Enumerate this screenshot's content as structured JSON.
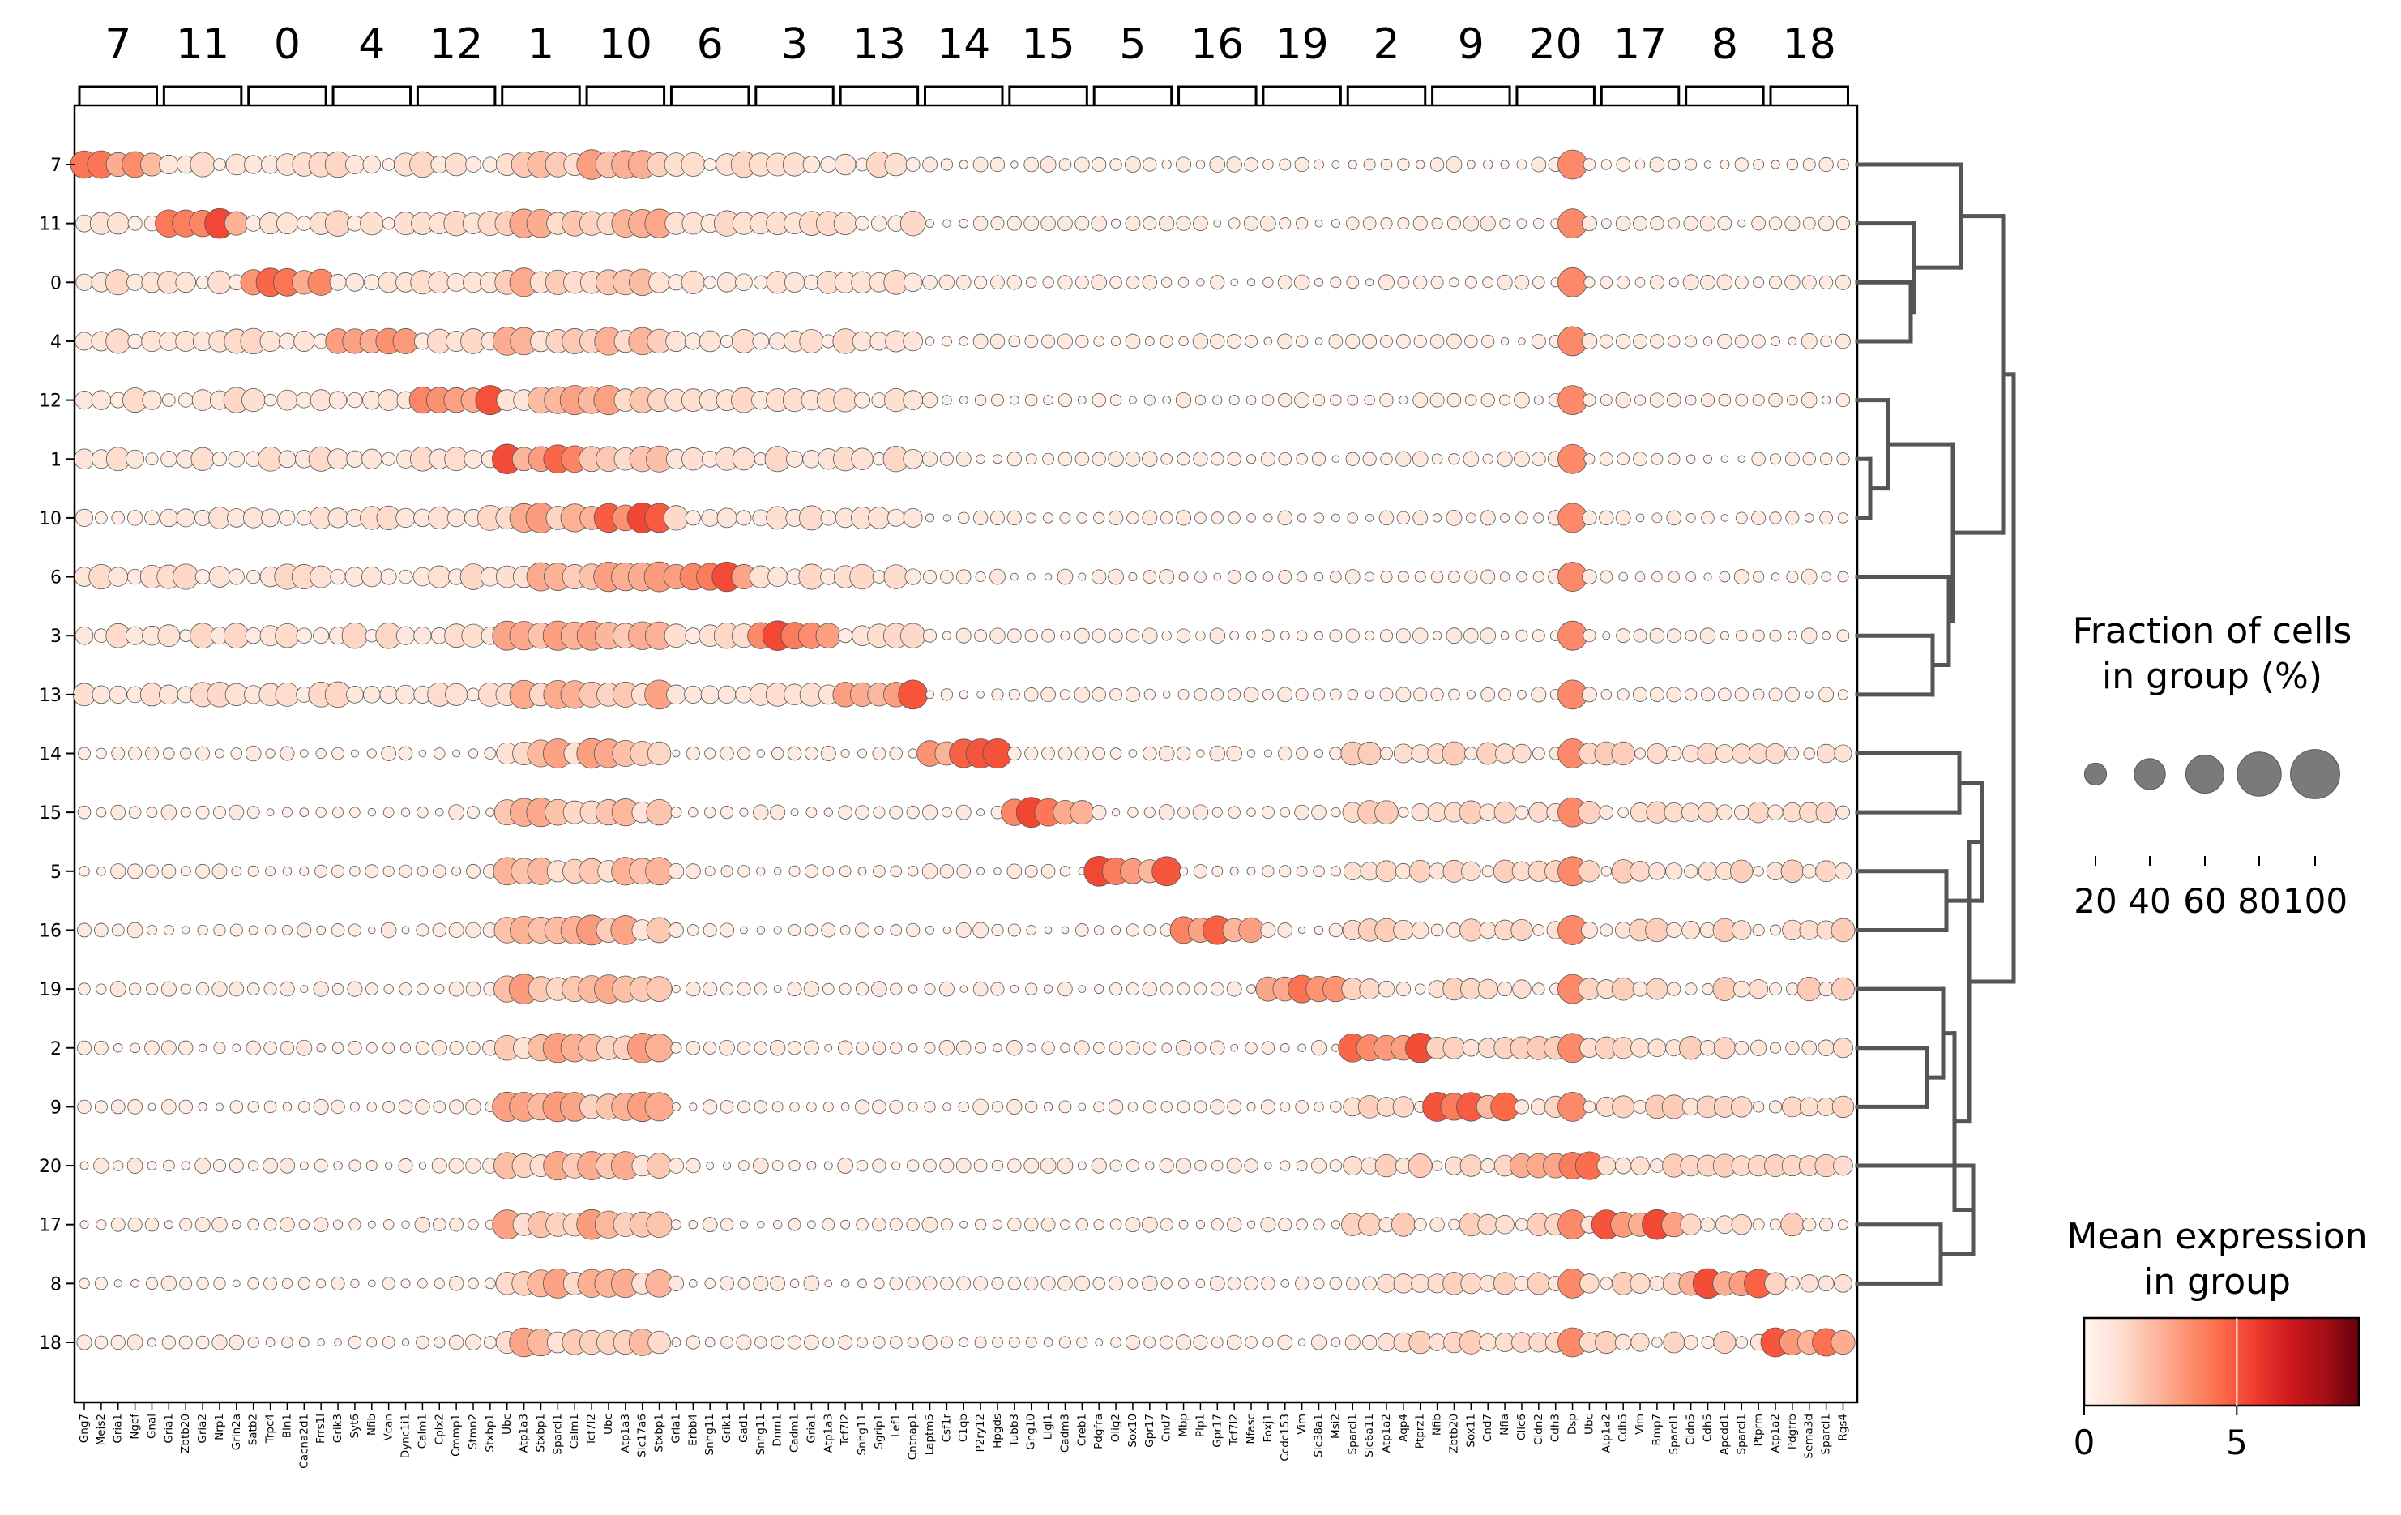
{
  "chart_data": {
    "type": "dotplot",
    "groups": [
      "7",
      "11",
      "0",
      "4",
      "12",
      "1",
      "10",
      "6",
      "3",
      "13",
      "14",
      "15",
      "5",
      "16",
      "19",
      "2",
      "9",
      "20",
      "17",
      "8",
      "18"
    ],
    "gene_categories": [
      {
        "label": "7",
        "genes": [
          "Gng7",
          "Meis2",
          "Gria1",
          "Ngef",
          "Gnal"
        ]
      },
      {
        "label": "11",
        "genes": [
          "Gria1",
          "Zbtb20",
          "Gria2",
          "Nrp1",
          "Grin2a"
        ]
      },
      {
        "label": "0",
        "genes": [
          "Satb2",
          "Trpc4",
          "Bin1",
          "Cacna2d1",
          "Frrs1l"
        ]
      },
      {
        "label": "4",
        "genes": [
          "Grik3",
          "Syt6",
          "Nfib",
          "Vcan",
          "Dync1i1"
        ]
      },
      {
        "label": "12",
        "genes": [
          "Calm1",
          "Cplx2",
          "Cmmp1",
          "Stmn2",
          "Stxbp1"
        ]
      },
      {
        "label": "1",
        "genes": [
          "Ubc",
          "Atp1a3",
          "Stxbp1",
          "Sparcl1",
          "Calm1"
        ]
      },
      {
        "label": "10",
        "genes": [
          "Tcf7l2",
          "Ubc",
          "Atp1a3",
          "Slc17a6",
          "Stxbp1"
        ]
      },
      {
        "label": "6",
        "genes": [
          "Gria1",
          "Erbb4",
          "Snhg11",
          "Grik1",
          "Gad1"
        ]
      },
      {
        "label": "3",
        "genes": [
          "Snhg11",
          "Dnm1",
          "Cadm1",
          "Gria1",
          "Atp1a3"
        ]
      },
      {
        "label": "13",
        "genes": [
          "Tcf7l2",
          "Snhg11",
          "Sgrip1",
          "Lef1",
          "Cntnap1"
        ]
      },
      {
        "label": "14",
        "genes": [
          "Laptm5",
          "Csf1r",
          "C1qb",
          "P2ry12",
          "Hpgds"
        ]
      },
      {
        "label": "15",
        "genes": [
          "Tubb3",
          "Gng10",
          "Llgl1",
          "Cadm3",
          "Creb1"
        ]
      },
      {
        "label": "5",
        "genes": [
          "Pdgfra",
          "Olig2",
          "Sox10",
          "Gpr17",
          "Cnd7"
        ]
      },
      {
        "label": "16",
        "genes": [
          "Mbp",
          "Plp1",
          "Gpr17",
          "Tcf7l2",
          "Nfasc"
        ]
      },
      {
        "label": "19",
        "genes": [
          "Foxj1",
          "Ccdc153",
          "Vim",
          "Slc38a1",
          "Msi2"
        ]
      },
      {
        "label": "2",
        "genes": [
          "Sparcl1",
          "Slc6a11",
          "Atp1a2",
          "Aqp4",
          "Ptprz1"
        ]
      },
      {
        "label": "9",
        "genes": [
          "Nfib",
          "Zbtb20",
          "Sox11",
          "Cnd7",
          "Nfia"
        ]
      },
      {
        "label": "20",
        "genes": [
          "Clic6",
          "Cldn2",
          "Cdh3",
          "Dsp",
          "Ubc"
        ]
      },
      {
        "label": "17",
        "genes": [
          "Atp1a2",
          "Cdh5",
          "Vim",
          "Bmp7",
          "Sparcl1"
        ]
      },
      {
        "label": "8",
        "genes": [
          "Cldn5",
          "Cdh5",
          "Apcdd1",
          "Sparcl1",
          "Ptprm"
        ]
      },
      {
        "label": "18",
        "genes": [
          "Atp1a2",
          "Pdgfrb",
          "Sema3d",
          "Sparcl1",
          "Rgs4"
        ]
      }
    ],
    "size_legend": {
      "title": [
        "Fraction of cells",
        "in group (%)"
      ],
      "values": [
        20,
        40,
        60,
        80,
        100
      ],
      "tick_labels": [
        "20",
        "40",
        "60",
        "80",
        "100"
      ]
    },
    "color_legend": {
      "title": [
        "Mean expression",
        "in group"
      ],
      "range": [
        0,
        9
      ],
      "tick_values": [
        0,
        5
      ],
      "tick_labels": [
        "0",
        "5"
      ],
      "colormap": "Reds"
    },
    "dendrogram": "hierarchical clustering of groups, drawn at right"
  },
  "colors": {
    "axis": "#000000",
    "dendrogram": "#555555",
    "dot_edge": "#555555",
    "legend_dot": "#7a7a7a"
  }
}
